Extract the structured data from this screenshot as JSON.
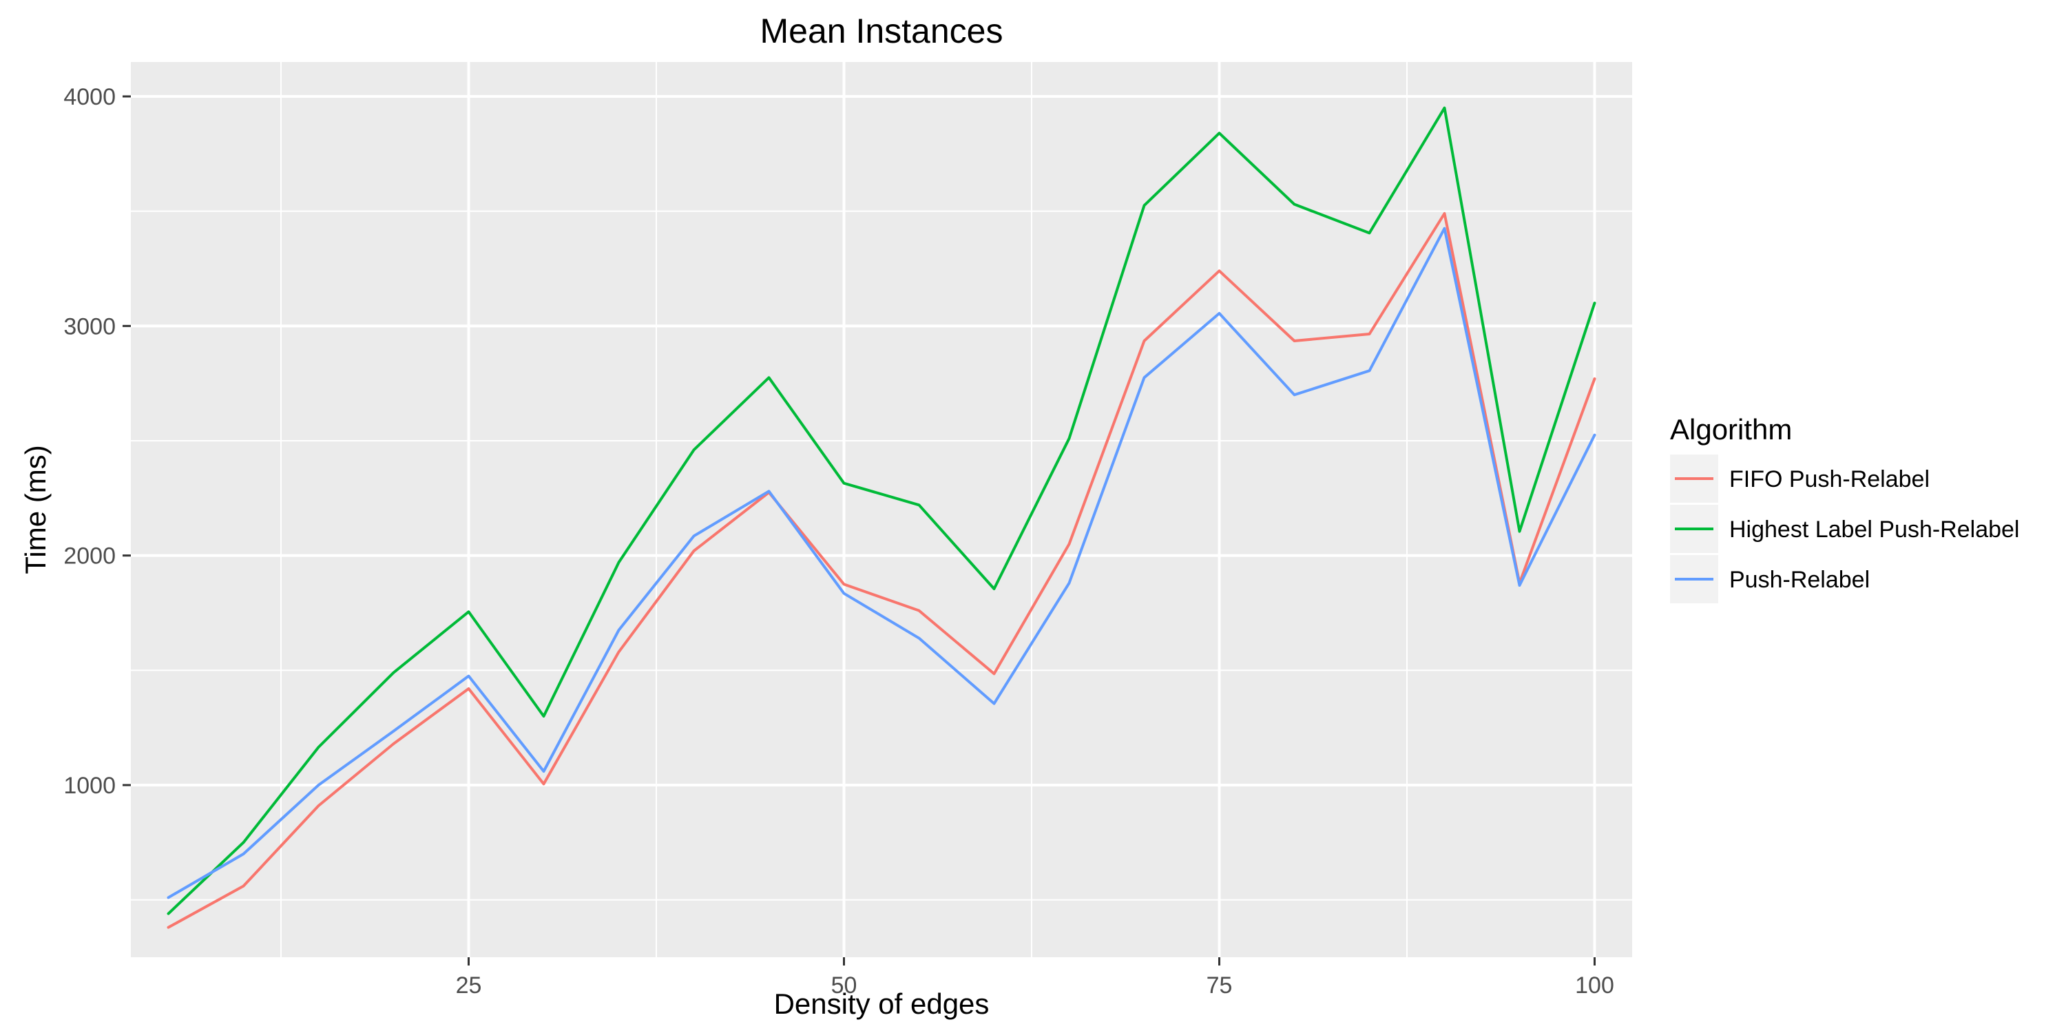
{
  "chart_data": {
    "type": "line",
    "title": "Mean Instances",
    "xlabel": "Density of edges",
    "ylabel": "Time (ms)",
    "x": [
      5,
      10,
      15,
      20,
      25,
      30,
      35,
      40,
      45,
      50,
      55,
      60,
      65,
      70,
      75,
      80,
      85,
      90,
      95,
      100
    ],
    "xlim": [
      2.5,
      102.5
    ],
    "ylim": [
      250,
      4150
    ],
    "x_ticks": [
      25,
      50,
      75,
      100
    ],
    "x_minor_ticks": [
      12.5,
      37.5,
      62.5,
      87.5
    ],
    "y_ticks": [
      1000,
      2000,
      3000,
      4000
    ],
    "y_minor_ticks": [
      500,
      1500,
      2500,
      3500
    ],
    "legend_title": "Algorithm",
    "legend_position": "right",
    "grid": true,
    "background_color": "#ebebeb",
    "grid_color": "#ffffff",
    "series": [
      {
        "name": "FIFO Push-Relabel",
        "color": "#f8766d",
        "values": [
          380,
          560,
          910,
          1180,
          1420,
          1005,
          1580,
          2020,
          2275,
          1875,
          1760,
          1485,
          2050,
          2935,
          3240,
          2935,
          2965,
          3490,
          1880,
          2770
        ]
      },
      {
        "name": "Highest Label Push-Relabel",
        "color": "#00ba38",
        "values": [
          440,
          750,
          1165,
          1490,
          1755,
          1300,
          1970,
          2460,
          2775,
          2315,
          2220,
          1855,
          2510,
          3525,
          3840,
          3530,
          3405,
          3950,
          2105,
          3100
        ]
      },
      {
        "name": "Push-Relabel",
        "color": "#619cff",
        "values": [
          510,
          700,
          1000,
          1235,
          1475,
          1060,
          1675,
          2085,
          2280,
          1835,
          1640,
          1355,
          1880,
          2775,
          3055,
          2700,
          2805,
          3425,
          1870,
          2525
        ]
      }
    ]
  }
}
